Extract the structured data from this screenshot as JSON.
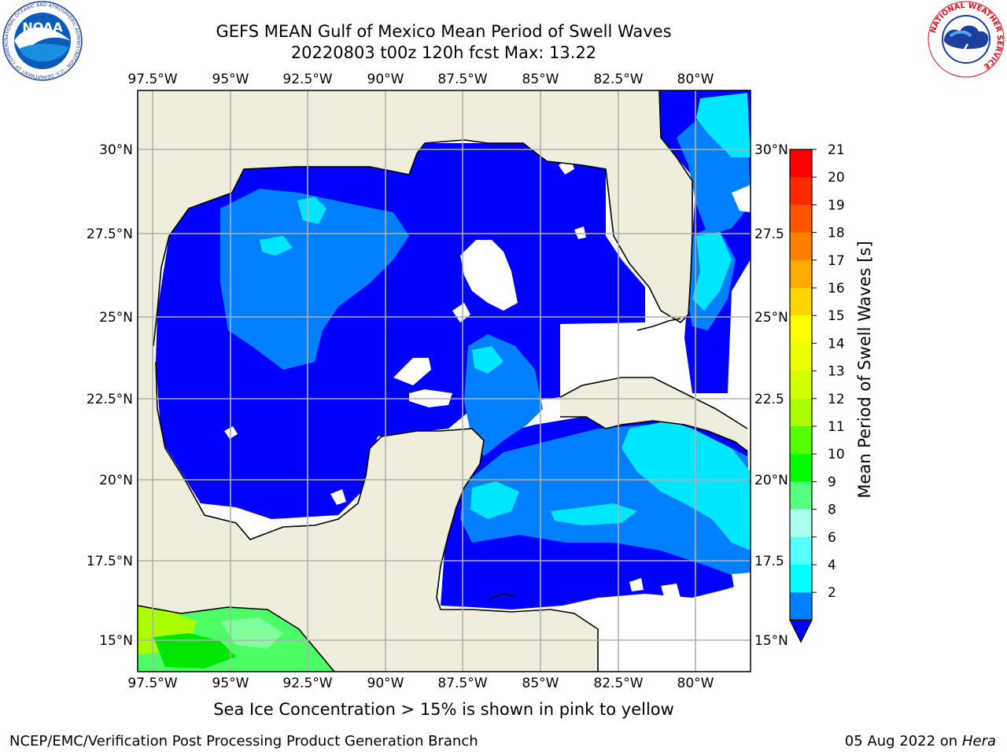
{
  "header": {
    "title": "GEFS MEAN Gulf of Mexico Mean Period of Swell Waves",
    "subtitle": "20220803 t00z 120h fcst   Max: 13.22"
  },
  "footer": {
    "note": "Sea Ice Concentration > 15% is shown in pink to yellow",
    "credit_left": "NCEP/EMC/Verification Post Processing Product Generation Branch",
    "credit_date": "05 Aug 2022 on",
    "credit_machine": "Hera"
  },
  "logos": {
    "noaa": {
      "label": "NOAA",
      "ring_text": "NATIONAL OCEANIC AND ATMOSPHERIC ADMINISTRATION · U.S. DEPARTMENT OF COMMERCE"
    },
    "nws": {
      "ring_text": "NATIONAL WEATHER SERVICE"
    }
  },
  "map": {
    "lon_labels": [
      "97.5°W",
      "95°W",
      "92.5°W",
      "90°W",
      "87.5°W",
      "85°W",
      "82.5°W",
      "80°W"
    ],
    "lat_labels_left": [
      "30°N",
      "27.5°N",
      "25°N",
      "22.5°N",
      "20°N",
      "17.5°N",
      "15°N"
    ],
    "lat_labels_right": [
      "30°N",
      "27.5",
      "25°N",
      "22.5",
      "20°N",
      "17.5",
      "15°N"
    ],
    "colors": {
      "land": "#efeedc",
      "ocean_low": "#0000ff",
      "ocean_mid": "#0080ff",
      "ocean_high": "#00e6ff",
      "grid": "#b0b0b0"
    }
  },
  "colorbar": {
    "label": "Mean Period of Swell Waves [s]",
    "ticks": [
      "21",
      "20",
      "19",
      "18",
      "17",
      "16",
      "15",
      "14",
      "13",
      "12",
      "11",
      "10",
      "9",
      "8",
      "6",
      "4",
      "2"
    ],
    "colors": [
      "#ff0000",
      "#ff2a00",
      "#ff5500",
      "#ff8000",
      "#ffaa00",
      "#ffd400",
      "#ffff00",
      "#eaff00",
      "#d4ff00",
      "#aaff00",
      "#55ff00",
      "#00ff00",
      "#55ff80",
      "#aaffee",
      "#55ffff",
      "#00ffff",
      "#0080ff"
    ]
  }
}
